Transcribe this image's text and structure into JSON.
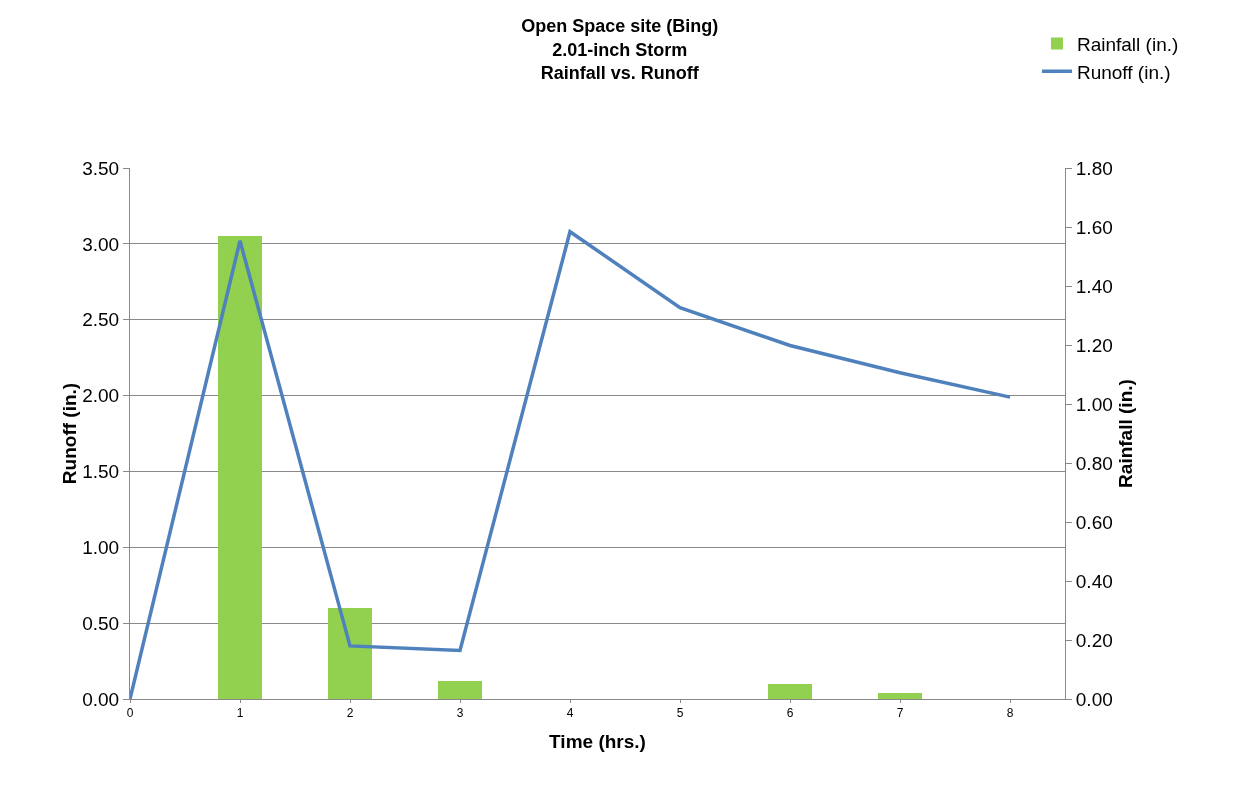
{
  "chart_data": {
    "type": "line",
    "title": "Open Space site (Bing)\n2.01-inch Storm\nRainfall vs. Runoff",
    "xlabel": "Time (hrs.)",
    "ylabel": "Runoff (in.)",
    "y2label": "Rainfall (in.)",
    "x": [
      0,
      1,
      2,
      3,
      4,
      5,
      6,
      7,
      8
    ],
    "series": [
      {
        "name": "Rainfall (in.)",
        "type": "bar",
        "axis": "y2",
        "color": "#92d050",
        "values": [
          0,
          1.57,
          0.31,
          0.06,
          0,
          0,
          0.05,
          0.02,
          0
        ]
      },
      {
        "name": "Runoff (in.)",
        "color": "#4f81bd",
        "values": [
          0,
          3.02,
          0.35,
          0.32,
          3.08,
          2.58,
          2.33,
          2.15,
          1.99
        ]
      }
    ],
    "xlim": [
      0,
      8.5
    ],
    "xticks": [
      0,
      1,
      2,
      3,
      4,
      5,
      6,
      7,
      8
    ],
    "ylim": [
      0,
      3.5
    ],
    "yticks": [
      {
        "value": 0,
        "label": "0.00"
      },
      {
        "value": 0.5,
        "label": "0.50"
      },
      {
        "value": 1,
        "label": "1.00"
      },
      {
        "value": 1.5,
        "label": "1.50"
      },
      {
        "value": 2,
        "label": "2.00"
      },
      {
        "value": 2.5,
        "label": "2.50"
      },
      {
        "value": 3,
        "label": "3.00"
      },
      {
        "value": 3.5,
        "label": "3.50"
      }
    ],
    "y2lim": [
      0,
      1.8
    ],
    "y2ticks": [
      {
        "value": 0,
        "label": "0.00"
      },
      {
        "value": 0.2,
        "label": "0.20"
      },
      {
        "value": 0.4,
        "label": "0.40"
      },
      {
        "value": 0.6,
        "label": "0.60"
      },
      {
        "value": 0.8,
        "label": "0.80"
      },
      {
        "value": 1,
        "label": "1.00"
      },
      {
        "value": 1.2,
        "label": "1.20"
      },
      {
        "value": 1.4,
        "label": "1.40"
      },
      {
        "value": 1.6,
        "label": "1.60"
      },
      {
        "value": 1.8,
        "label": "1.80"
      }
    ],
    "grid": "y",
    "legend": "top right",
    "marker": "none",
    "line_style": "solid"
  }
}
